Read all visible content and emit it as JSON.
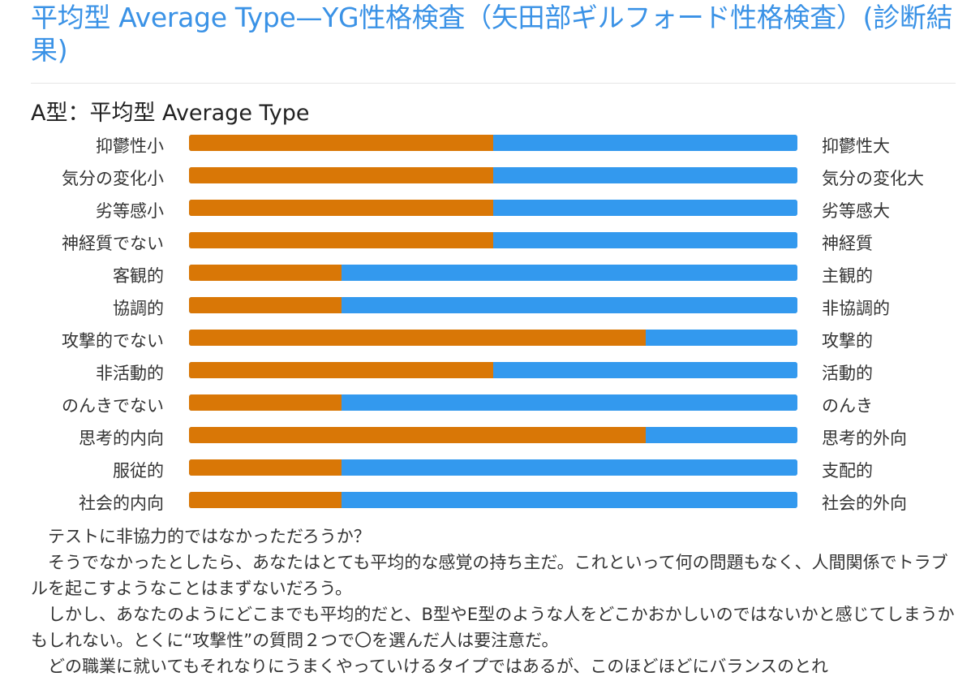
{
  "page": {
    "title": "平均型 Average Type—YG性格検査（矢田部ギルフォード性格検査）(診断結果)",
    "section_heading": "A型：平均型 Average Type"
  },
  "colors": {
    "title": "#3a92e6",
    "left_fill": "#d97706",
    "right_fill": "#3399ee"
  },
  "chart_data": {
    "type": "bar",
    "orientation": "horizontal-stacked",
    "title": "A型：平均型 Average Type",
    "scale": [
      0,
      1
    ],
    "rows": [
      {
        "left": "抑鬱性小",
        "right": "抑鬱性大",
        "value": 0.5
      },
      {
        "left": "気分の変化小",
        "right": "気分の変化大",
        "value": 0.5
      },
      {
        "left": "劣等感小",
        "right": "劣等感大",
        "value": 0.5
      },
      {
        "left": "神経質でない",
        "right": "神経質",
        "value": 0.5
      },
      {
        "left": "客観的",
        "right": "主観的",
        "value": 0.25
      },
      {
        "left": "協調的",
        "right": "非協調的",
        "value": 0.25
      },
      {
        "left": "攻撃的でない",
        "right": "攻撃的",
        "value": 0.75
      },
      {
        "left": "非活動的",
        "right": "活動的",
        "value": 0.5
      },
      {
        "left": "のんきでない",
        "right": "のんき",
        "value": 0.25
      },
      {
        "left": "思考的内向",
        "right": "思考的外向",
        "value": 0.75
      },
      {
        "left": "服従的",
        "right": "支配的",
        "value": 0.25
      },
      {
        "left": "社会的内向",
        "right": "社会的外向",
        "value": 0.25
      }
    ]
  },
  "article": {
    "paragraphs": [
      "テストに非協力的ではなかっただろうか？",
      "そうでなかったとしたら、あなたはとても平均的な感覚の持ち主だ。これといって何の問題もなく、人間関係でトラブルを起こすようなことはまずないだろう。",
      "しかし、あなたのようにどこまでも平均的だと、B型やE型のような人をどこかおかしいのではないかと感じてしまうかもしれない。とくに“攻撃性”の質問２つで〇を選んだ人は要注意だ。",
      "どの職業に就いてもそれなりにうまくやっていけるタイプではあるが、このほどほどにバランスのとれ"
    ]
  }
}
